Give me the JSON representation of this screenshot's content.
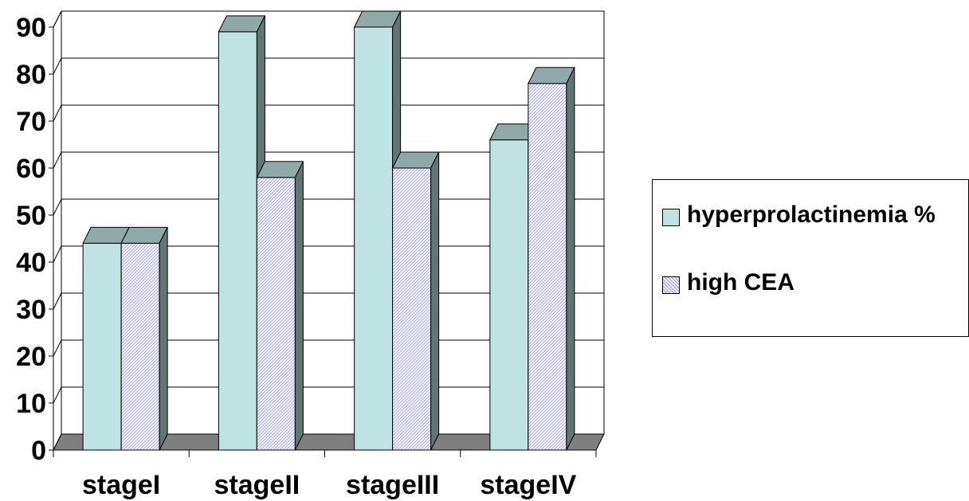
{
  "chart_data": {
    "type": "bar",
    "style": "3d-clustered-column",
    "categories": [
      "stageI",
      "stageII",
      "stageIII",
      "stageIV"
    ],
    "series": [
      {
        "name": "hyperprolactinemia %",
        "values": [
          44,
          89,
          90,
          66
        ],
        "color": "#bfe3e2",
        "pattern": "solid"
      },
      {
        "name": "high CEA",
        "values": [
          44,
          58,
          60,
          78
        ],
        "color": "#f3f1fb",
        "pattern": "fine-hatch"
      }
    ],
    "ylim": [
      0,
      90
    ],
    "yticks": [
      "0",
      "10",
      "20",
      "30",
      "40",
      "50",
      "60",
      "70",
      "80",
      "90"
    ],
    "grid": true,
    "legend": "right",
    "title": "",
    "xlabel": "",
    "ylabel": "",
    "colors": {
      "floor": "#7f7f7f",
      "bar_top": "#8ea9a8",
      "bar_side": "#5f7675"
    }
  }
}
